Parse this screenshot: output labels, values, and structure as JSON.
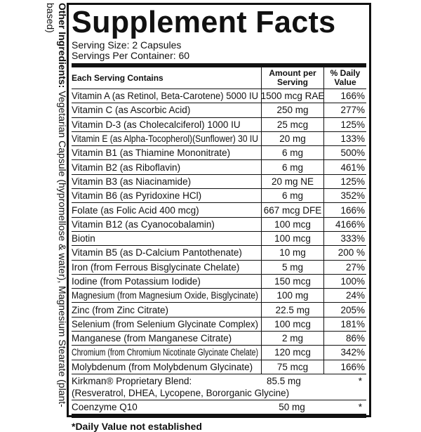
{
  "header": {
    "title": "Supplement Facts",
    "serving_size": "Serving Size: 2 Capsules",
    "servings_per_container": "Servings Per Container: 60"
  },
  "table": {
    "columns": [
      "Each Serving Contains",
      "Amount per Serving",
      "% Daily Value"
    ],
    "rows": [
      [
        "Vitamin A (as Retinol, Beta-Carotene) 5000 IU",
        "1500 mcg RAE",
        "166%"
      ],
      [
        "Vitamin C (as Ascorbic Acid)",
        "250 mg",
        "277%"
      ],
      [
        "Vitamin D-3 (as Cholecalciferol) 1000 IU",
        "25 mcg",
        "125%"
      ],
      [
        "Vitamin E (as Alpha-Tocopherol)(Sunflower) 30 IU",
        "20 mg",
        "133%"
      ],
      [
        "Vitamin B1 (as Thiamine Mononitrate)",
        "6 mg",
        "500%"
      ],
      [
        "Vitamin B2 (as Riboflavin)",
        "6 mg",
        "461%"
      ],
      [
        "Vitamin B3 (as Niacinamide)",
        "20 mg NE",
        "125%"
      ],
      [
        "Vitamin B6 (as Pyridoxine HCl)",
        "6 mg",
        "352%"
      ],
      [
        "Folate (as Folic Acid 400 mcg)",
        "667 mcg DFE",
        "166%"
      ],
      [
        "Vitamin B12 (as Cyanocobalamin)",
        "100 mcg",
        "4166%"
      ],
      [
        "Biotin",
        "100 mcg",
        "333%"
      ],
      [
        "Vitamin B5 (as D-Calcium Pantothenate)",
        "10 mg",
        "200 %"
      ],
      [
        "Iron (from Ferrous Bisglycinate Chelate)",
        "5 mg",
        "27%"
      ],
      [
        "Iodine (from Potassium Iodide)",
        "150 mcg",
        "100%"
      ],
      [
        "Magnesium (from Magnesium Oxide, Bisglycinate)",
        "100 mg",
        "24%"
      ],
      [
        "Zinc (from Zinc Citrate)",
        "22.5 mg",
        "205%"
      ],
      [
        "Selenium (from Selenium Glycinate Complex)",
        "100 mcg",
        "181%"
      ],
      [
        "Manganese (from Manganese Citrate)",
        "2 mg",
        "86%"
      ],
      [
        "Chromium (from Chromium Nicotinate Glycinate Chelate)",
        "120 mcg",
        "342%"
      ],
      [
        "Molybdenum (from Molybdenum Glycinate)",
        "75 mcg",
        "166%"
      ]
    ],
    "blend": {
      "name": "Kirkman® Proprietary Blend:",
      "ingredients": "(Resveratrol, DHEA, Lycopene, Bororganic Glycine)",
      "amount": "85.5 mg",
      "daily_value": "*"
    },
    "extra_row": [
      "Coenzyme Q10",
      "50 mg",
      "*"
    ]
  },
  "footnote": "*Daily Value not established",
  "other_ingredients": {
    "label": "Other Ingredients:",
    "text": "Vegetarian Capsule (hypromellose & water), Magnesium Stearate (plant-based)"
  }
}
